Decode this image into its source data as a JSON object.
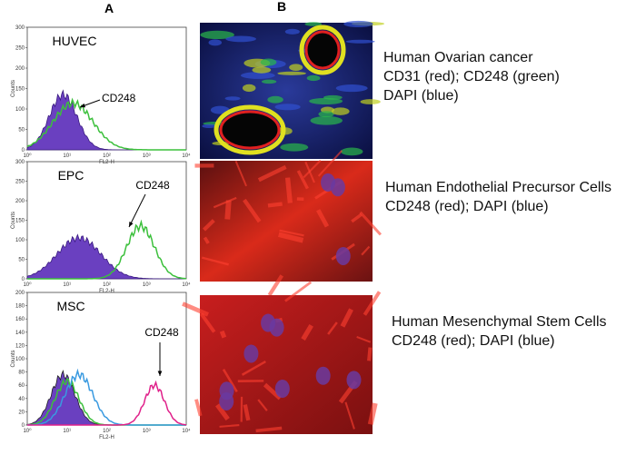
{
  "panel_labels": [
    "A",
    "B"
  ],
  "histogram_axes": {
    "y_label": "Counts",
    "x_label": "FL2-H",
    "x_ticks": [
      "10⁰",
      "10¹",
      "10²",
      "10³",
      "10⁴"
    ]
  },
  "rows": [
    {
      "sample": "HUVEC",
      "marker": "CD248",
      "y_ticks": [
        "0",
        "50",
        "100",
        "150",
        "200",
        "250",
        "300"
      ],
      "caption": [
        "Human Ovarian cancer",
        "CD31 (red); CD248 (green)",
        "DAPI (blue)"
      ]
    },
    {
      "sample": "EPC",
      "marker": "CD248",
      "y_ticks": [
        "0",
        "50",
        "100",
        "150",
        "200",
        "250",
        "300"
      ],
      "caption": [
        "Human Endothelial Precursor Cells",
        "CD248 (red); DAPI (blue)"
      ]
    },
    {
      "sample": "MSC",
      "marker": "CD248",
      "y_ticks": [
        "0",
        "20",
        "40",
        "60",
        "80",
        "100",
        "120",
        "140",
        "160",
        "180",
        "200"
      ],
      "caption": [
        "Human Mesenchymal Stem Cells",
        "CD248 (red); DAPI (blue)"
      ]
    }
  ]
}
